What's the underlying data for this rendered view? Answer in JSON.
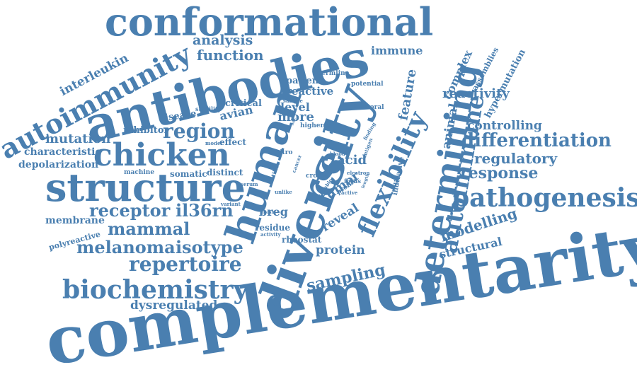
{
  "color": "#4a7fb0",
  "words": [
    "complementarity",
    "diversity",
    "antibodies",
    "conformational",
    "human",
    "cell",
    "structure",
    "chicken",
    "autoimmunity",
    "determining",
    "flexibility",
    "pathogenesis",
    "autoimmune",
    "biochemistry",
    "region",
    "repertoire",
    "differentiation",
    "melanoma",
    "isotype",
    "receptor",
    "il36rn",
    "mammal",
    "response",
    "sampling",
    "regulatory",
    "modelling",
    "function",
    "analysis",
    "interleukin",
    "immune",
    "complex",
    "reactivity",
    "feature",
    "animal",
    "controlling",
    "hypermutation",
    "assemblies",
    "mutation",
    "characteristic",
    "depolarization",
    "dysregulated",
    "membrane",
    "polyreactive",
    "inhibitor",
    "effect",
    "disease",
    "stability",
    "critical",
    "avian",
    "somatic",
    "distinct",
    "machine",
    "patient",
    "reactive",
    "level",
    "more",
    "acid",
    "tumor",
    "reveal",
    "breg",
    "residue",
    "rheostat",
    "protein",
    "structural",
    "germline",
    "potential",
    "humoral",
    "sample",
    "higher",
    "model",
    "vitro",
    "utilise",
    "cancer",
    "blood",
    "antigen",
    "finding",
    "electron",
    "cross",
    "capable",
    "profile",
    "focus",
    "active",
    "activity",
    "unlike",
    "variant",
    "serum",
    "mcsm",
    "indicative",
    "length",
    "link"
  ]
}
